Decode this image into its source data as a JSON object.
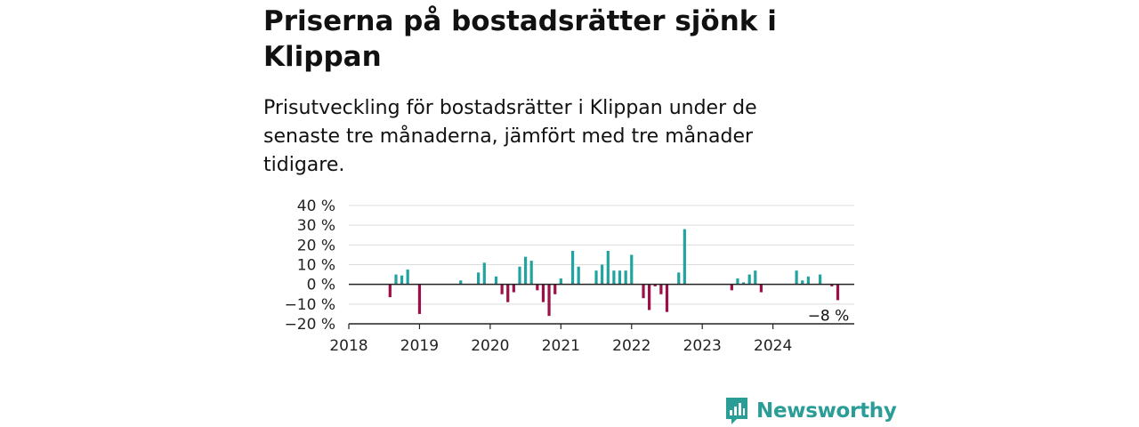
{
  "title": "Priserna på bostadsrätter sjönk i Klippan",
  "subtitle": "Prisutveckling för bostadsrätter i Klippan under de senaste tre månaderna, jämfört med tre månader tidigare.",
  "brand": {
    "name": "Newsworthy",
    "icon": "newsworthy-logo-icon",
    "color": "#2a9d96"
  },
  "colors": {
    "positive": "#21a3a0",
    "negative": "#9c0f47"
  },
  "chart_data": {
    "type": "bar",
    "ylim": [
      -20,
      40
    ],
    "yticks": [
      40,
      30,
      20,
      10,
      0,
      -10,
      -20
    ],
    "ytick_labels": [
      "40 %",
      "30 %",
      "20 %",
      "10 %",
      "0 %",
      "−10 %",
      "−20 %"
    ],
    "xlim": [
      2018.0,
      2025.15
    ],
    "xticks": [
      2018,
      2019,
      2020,
      2021,
      2022,
      2023,
      2024
    ],
    "xtick_labels": [
      "2018",
      "2019",
      "2020",
      "2021",
      "2022",
      "2023",
      "2024"
    ],
    "grid": true,
    "annotation": {
      "label": "−8 %",
      "x": 2024.92,
      "y": -8
    },
    "x": [
      2018.583,
      2018.667,
      2018.75,
      2018.833,
      2019.0,
      2019.583,
      2019.833,
      2019.917,
      2020.083,
      2020.167,
      2020.25,
      2020.333,
      2020.417,
      2020.5,
      2020.583,
      2020.667,
      2020.75,
      2020.833,
      2020.917,
      2021.0,
      2021.167,
      2021.25,
      2021.5,
      2021.583,
      2021.667,
      2021.75,
      2021.833,
      2021.917,
      2022.0,
      2022.167,
      2022.25,
      2022.333,
      2022.417,
      2022.5,
      2022.667,
      2022.75,
      2023.417,
      2023.5,
      2023.583,
      2023.667,
      2023.75,
      2023.833,
      2024.333,
      2024.417,
      2024.5,
      2024.667,
      2024.833,
      2024.917
    ],
    "values": [
      -6.5,
      5,
      4.5,
      7.5,
      -15,
      2,
      6,
      11,
      4,
      -5,
      -9,
      -4,
      9,
      14,
      12,
      -3,
      -9,
      -16,
      -5,
      3,
      17,
      9,
      7,
      10,
      17,
      7,
      7,
      7,
      15,
      -7,
      -13,
      -1,
      -5,
      -14,
      6,
      28,
      -3,
      3,
      1,
      5,
      7,
      -4,
      7,
      2,
      4,
      5,
      -1,
      -8
    ]
  }
}
